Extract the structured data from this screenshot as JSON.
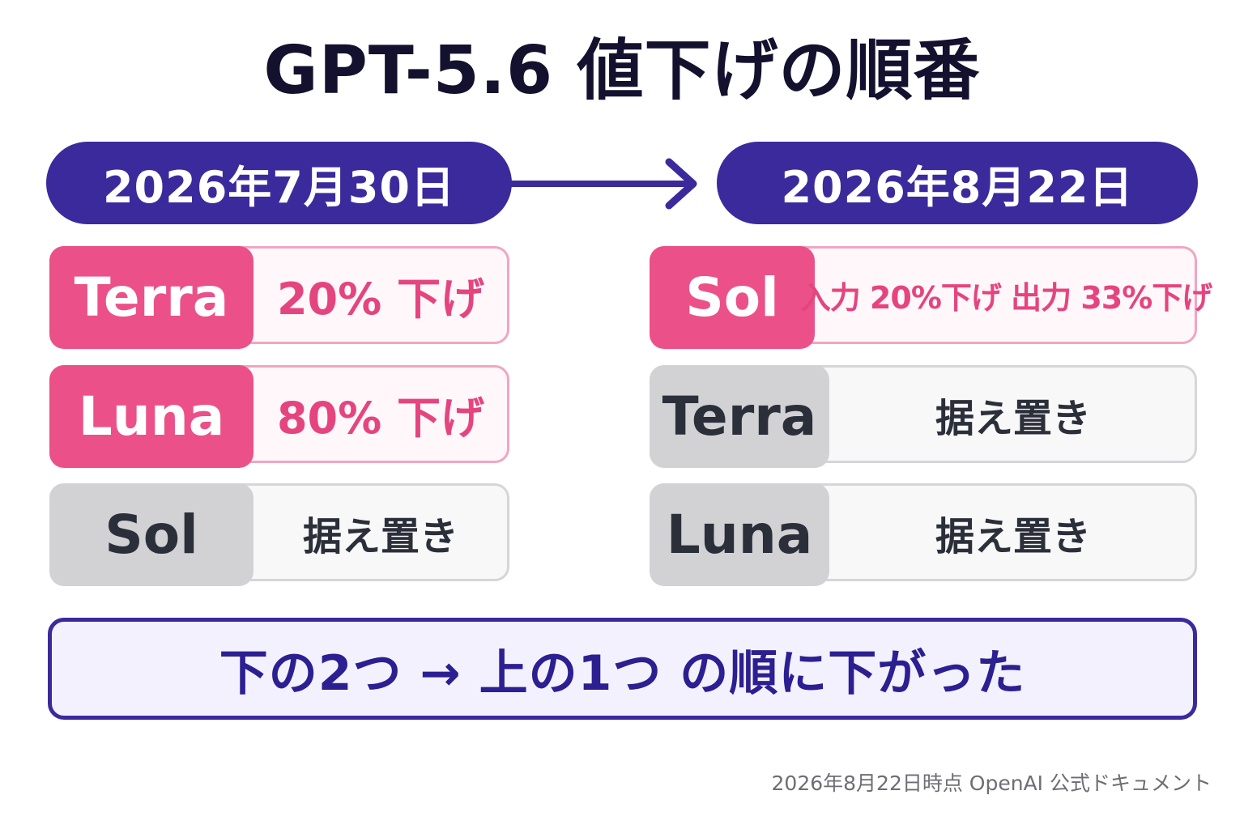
{
  "title": "GPT-5.6 値下げの順番",
  "accent_color": "#3b2a9c",
  "highlight_color": "#ec5089",
  "left": {
    "date": "2026年7月30日",
    "rows": [
      {
        "model": "Terra",
        "value": "20% 下げ",
        "status": "price-cut"
      },
      {
        "model": "Luna",
        "value": "80% 下げ",
        "status": "price-cut"
      },
      {
        "model": "Sol",
        "value": "据え置き",
        "status": "unchanged"
      }
    ]
  },
  "right": {
    "date": "2026年8月22日",
    "rows": [
      {
        "model": "Sol",
        "value": "入力 20%下げ  出力 33%下げ",
        "status": "price-cut"
      },
      {
        "model": "Terra",
        "value": "据え置き",
        "status": "unchanged"
      },
      {
        "model": "Luna",
        "value": "据え置き",
        "status": "unchanged"
      }
    ]
  },
  "summary": "下の2つ → 上の1つ の順に下がった",
  "footer": "2026年8月22日時点 OpenAI 公式ドキュメント"
}
